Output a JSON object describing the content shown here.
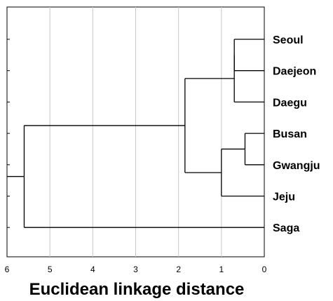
{
  "chart_data": {
    "type": "dendrogram",
    "xlabel": "Euclidean linkage distance",
    "xlim": [
      6,
      0
    ],
    "x_ticks": [
      "6",
      "5",
      "4",
      "3",
      "2",
      "1",
      "0"
    ],
    "x_tick_values": [
      6,
      5,
      4,
      3,
      2,
      1,
      0
    ],
    "grid": "vertical",
    "leaves": [
      "Seoul",
      "Daejeon",
      "Daegu",
      "Busan",
      "Gwangju",
      "Jeju",
      "Saga"
    ],
    "merges": [
      {
        "left": 0,
        "right": 1,
        "height": 0.7
      },
      {
        "left": 3,
        "right": 4,
        "height": 0.45
      },
      {
        "left": 7,
        "right": 2,
        "height": 0.7
      },
      {
        "left": 8,
        "right": 5,
        "height": 1.0
      },
      {
        "left": 9,
        "right": 10,
        "height": 1.85
      },
      {
        "left": 11,
        "right": 6,
        "height": 5.6
      }
    ]
  }
}
